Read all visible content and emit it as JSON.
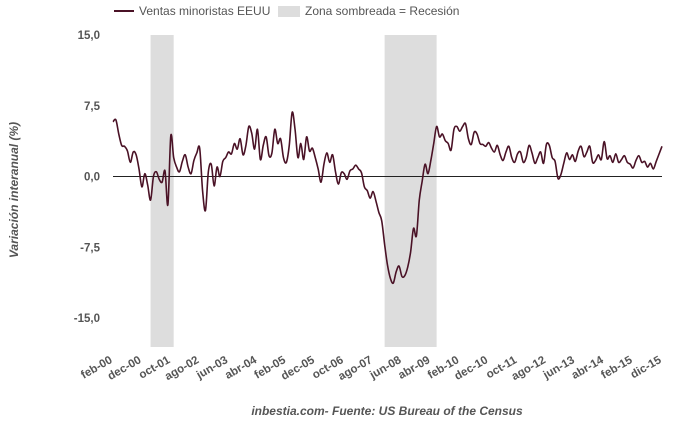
{
  "chart_data": {
    "type": "line",
    "legend": {
      "placement": "top",
      "entries": [
        {
          "label": "Ventas minoristas EEUU",
          "kind": "line",
          "color": "#4a1226"
        },
        {
          "label": "Zona sombreada = Recesión",
          "kind": "area",
          "color": "#dddddd"
        }
      ]
    },
    "ylabel": "Variación interanual (%)",
    "xlabel": "",
    "source": "inbestia.com- Fuente: US Bureau of the Census",
    "ylim": [
      -18,
      15
    ],
    "yticks": [
      15,
      7.5,
      0,
      -7.5,
      -15
    ],
    "ytick_labels": [
      "15,0",
      "7,5",
      "0,0",
      "-7,5",
      "-15,0"
    ],
    "xlim": [
      "2000-02",
      "2015-12"
    ],
    "xticks": [
      "2000-02",
      "2000-12",
      "2001-10",
      "2002-08",
      "2003-06",
      "2004-04",
      "2005-02",
      "2005-12",
      "2006-10",
      "2007-08",
      "2008-06",
      "2009-04",
      "2010-02",
      "2010-12",
      "2011-10",
      "2012-08",
      "2013-06",
      "2014-04",
      "2015-02",
      "2015-12"
    ],
    "xtick_labels": [
      "feb-00",
      "dec-00",
      "oct-01",
      "ago-02",
      "jun-03",
      "abr-04",
      "feb-05",
      "dec-05",
      "oct-06",
      "ago-07",
      "jun-08",
      "abr-09",
      "feb-10",
      "dec-10",
      "oct-11",
      "ago-12",
      "jun-13",
      "abr-14",
      "feb-15",
      "dic-15"
    ],
    "grid": false,
    "zero_line": true,
    "recessions": [
      {
        "start": "2001-03",
        "end": "2001-11"
      },
      {
        "start": "2007-12",
        "end": "2009-06"
      }
    ],
    "series": [
      {
        "name": "Ventas minoristas EEUU",
        "color": "#4a1226",
        "points": [
          [
            "2000-02",
            5.8
          ],
          [
            "2000-03",
            6.0
          ],
          [
            "2000-04",
            4.5
          ],
          [
            "2000-05",
            3.3
          ],
          [
            "2000-06",
            3.2
          ],
          [
            "2000-07",
            2.7
          ],
          [
            "2000-08",
            1.5
          ],
          [
            "2000-09",
            2.6
          ],
          [
            "2000-10",
            2.3
          ],
          [
            "2000-11",
            0.8
          ],
          [
            "2000-12",
            -1.1
          ],
          [
            "2001-01",
            0.3
          ],
          [
            "2001-02",
            -0.9
          ],
          [
            "2001-03",
            -2.5
          ],
          [
            "2001-04",
            0.0
          ],
          [
            "2001-05",
            0.5
          ],
          [
            "2001-06",
            -0.3
          ],
          [
            "2001-07",
            -0.6
          ],
          [
            "2001-08",
            0.6
          ],
          [
            "2001-09",
            -3.0
          ],
          [
            "2001-10",
            4.3
          ],
          [
            "2001-11",
            2.0
          ],
          [
            "2001-12",
            1.0
          ],
          [
            "2002-01",
            0.5
          ],
          [
            "2002-02",
            1.6
          ],
          [
            "2002-03",
            2.3
          ],
          [
            "2002-04",
            1.0
          ],
          [
            "2002-05",
            0.3
          ],
          [
            "2002-06",
            1.7
          ],
          [
            "2002-07",
            2.5
          ],
          [
            "2002-08",
            3.0
          ],
          [
            "2002-09",
            -1.5
          ],
          [
            "2002-10",
            -3.6
          ],
          [
            "2002-11",
            0.5
          ],
          [
            "2002-12",
            1.3
          ],
          [
            "2003-01",
            -1.0
          ],
          [
            "2003-02",
            1.0
          ],
          [
            "2003-03",
            0.0
          ],
          [
            "2003-04",
            1.6
          ],
          [
            "2003-05",
            2.0
          ],
          [
            "2003-06",
            2.6
          ],
          [
            "2003-07",
            2.4
          ],
          [
            "2003-08",
            3.5
          ],
          [
            "2003-09",
            2.9
          ],
          [
            "2003-10",
            4.0
          ],
          [
            "2003-11",
            2.3
          ],
          [
            "2003-12",
            3.3
          ],
          [
            "2004-01",
            5.3
          ],
          [
            "2004-02",
            4.6
          ],
          [
            "2004-03",
            2.9
          ],
          [
            "2004-04",
            5.0
          ],
          [
            "2004-05",
            1.8
          ],
          [
            "2004-06",
            3.3
          ],
          [
            "2004-07",
            4.2
          ],
          [
            "2004-08",
            2.2
          ],
          [
            "2004-09",
            2.5
          ],
          [
            "2004-10",
            5.0
          ],
          [
            "2004-11",
            3.5
          ],
          [
            "2004-12",
            4.0
          ],
          [
            "2005-01",
            2.0
          ],
          [
            "2005-02",
            1.5
          ],
          [
            "2005-03",
            3.3
          ],
          [
            "2005-04",
            6.8
          ],
          [
            "2005-05",
            5.0
          ],
          [
            "2005-06",
            2.0
          ],
          [
            "2005-07",
            3.5
          ],
          [
            "2005-08",
            1.8
          ],
          [
            "2005-09",
            4.2
          ],
          [
            "2005-10",
            2.7
          ],
          [
            "2005-11",
            3.0
          ],
          [
            "2005-12",
            2.0
          ],
          [
            "2006-01",
            0.8
          ],
          [
            "2006-02",
            -0.6
          ],
          [
            "2006-03",
            1.3
          ],
          [
            "2006-04",
            2.5
          ],
          [
            "2006-05",
            1.5
          ],
          [
            "2006-06",
            2.3
          ],
          [
            "2006-07",
            0.5
          ],
          [
            "2006-08",
            -0.8
          ],
          [
            "2006-09",
            0.4
          ],
          [
            "2006-10",
            0.3
          ],
          [
            "2006-11",
            -0.3
          ],
          [
            "2006-12",
            0.6
          ],
          [
            "2007-01",
            0.8
          ],
          [
            "2007-02",
            1.2
          ],
          [
            "2007-03",
            0.8
          ],
          [
            "2007-04",
            0.4
          ],
          [
            "2007-05",
            -1.1
          ],
          [
            "2007-06",
            -1.5
          ],
          [
            "2007-07",
            -2.3
          ],
          [
            "2007-08",
            -1.6
          ],
          [
            "2007-09",
            -2.6
          ],
          [
            "2007-10",
            -3.8
          ],
          [
            "2007-11",
            -4.7
          ],
          [
            "2007-12",
            -7.2
          ],
          [
            "2008-01",
            -9.4
          ],
          [
            "2008-02",
            -10.8
          ],
          [
            "2008-03",
            -11.3
          ],
          [
            "2008-04",
            -10.1
          ],
          [
            "2008-05",
            -9.5
          ],
          [
            "2008-06",
            -10.6
          ],
          [
            "2008-07",
            -10.5
          ],
          [
            "2008-08",
            -9.6
          ],
          [
            "2008-09",
            -8.0
          ],
          [
            "2008-10",
            -5.5
          ],
          [
            "2008-11",
            -6.3
          ],
          [
            "2008-12",
            -2.5
          ],
          [
            "2009-01",
            -0.5
          ],
          [
            "2009-02",
            1.3
          ],
          [
            "2009-03",
            0.3
          ],
          [
            "2009-04",
            1.7
          ],
          [
            "2009-05",
            3.5
          ],
          [
            "2009-06",
            5.3
          ],
          [
            "2009-07",
            4.2
          ],
          [
            "2009-08",
            4.5
          ],
          [
            "2009-09",
            3.8
          ],
          [
            "2009-10",
            3.5
          ],
          [
            "2009-11",
            2.8
          ],
          [
            "2009-12",
            5.0
          ],
          [
            "2010-01",
            5.3
          ],
          [
            "2010-02",
            4.8
          ],
          [
            "2010-03",
            5.3
          ],
          [
            "2010-04",
            5.6
          ],
          [
            "2010-05",
            4.0
          ],
          [
            "2010-06",
            3.4
          ],
          [
            "2010-07",
            4.7
          ],
          [
            "2010-08",
            4.5
          ],
          [
            "2010-09",
            3.5
          ],
          [
            "2010-10",
            3.4
          ],
          [
            "2010-11",
            3.2
          ],
          [
            "2010-12",
            3.6
          ],
          [
            "2011-01",
            3.0
          ],
          [
            "2011-02",
            2.6
          ],
          [
            "2011-03",
            3.3
          ],
          [
            "2011-04",
            2.3
          ],
          [
            "2011-05",
            1.7
          ],
          [
            "2011-06",
            2.6
          ],
          [
            "2011-07",
            3.2
          ],
          [
            "2011-08",
            2.0
          ],
          [
            "2011-09",
            1.5
          ],
          [
            "2011-10",
            2.4
          ],
          [
            "2011-11",
            2.6
          ],
          [
            "2011-12",
            1.5
          ],
          [
            "2012-01",
            2.0
          ],
          [
            "2012-02",
            3.3
          ],
          [
            "2012-03",
            2.5
          ],
          [
            "2012-04",
            1.4
          ],
          [
            "2012-05",
            2.0
          ],
          [
            "2012-06",
            2.6
          ],
          [
            "2012-07",
            1.4
          ],
          [
            "2012-08",
            3.4
          ],
          [
            "2012-09",
            3.3
          ],
          [
            "2012-10",
            2.0
          ],
          [
            "2012-11",
            1.6
          ],
          [
            "2012-12",
            -0.2
          ],
          [
            "2013-01",
            0.2
          ],
          [
            "2013-02",
            1.4
          ],
          [
            "2013-03",
            2.5
          ],
          [
            "2013-04",
            1.8
          ],
          [
            "2013-05",
            2.3
          ],
          [
            "2013-06",
            1.6
          ],
          [
            "2013-07",
            2.7
          ],
          [
            "2013-08",
            3.2
          ],
          [
            "2013-09",
            2.1
          ],
          [
            "2013-10",
            2.6
          ],
          [
            "2013-11",
            3.2
          ],
          [
            "2013-12",
            1.5
          ],
          [
            "2014-01",
            1.7
          ],
          [
            "2014-02",
            2.3
          ],
          [
            "2014-03",
            1.8
          ],
          [
            "2014-04",
            3.7
          ],
          [
            "2014-05",
            1.9
          ],
          [
            "2014-06",
            2.2
          ],
          [
            "2014-07",
            1.5
          ],
          [
            "2014-08",
            2.4
          ],
          [
            "2014-09",
            1.5
          ],
          [
            "2014-10",
            1.8
          ],
          [
            "2014-11",
            2.2
          ],
          [
            "2014-12",
            1.5
          ],
          [
            "2015-01",
            1.3
          ],
          [
            "2015-02",
            0.9
          ],
          [
            "2015-03",
            1.7
          ],
          [
            "2015-04",
            2.2
          ],
          [
            "2015-05",
            1.5
          ],
          [
            "2015-06",
            1.6
          ],
          [
            "2015-07",
            1.0
          ],
          [
            "2015-08",
            1.4
          ],
          [
            "2015-09",
            0.8
          ],
          [
            "2015-10",
            1.6
          ],
          [
            "2015-11",
            2.4
          ],
          [
            "2015-12",
            3.2
          ]
        ]
      }
    ]
  }
}
